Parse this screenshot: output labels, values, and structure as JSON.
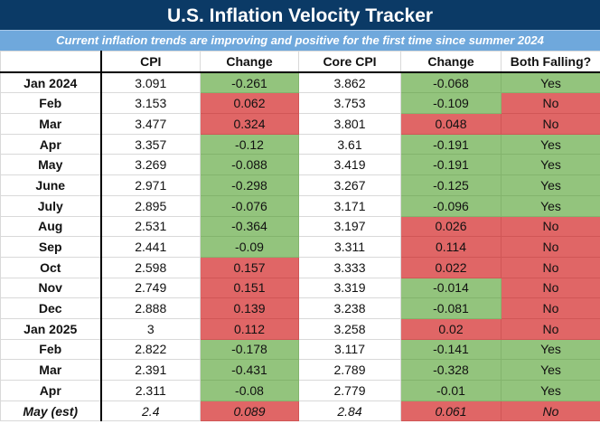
{
  "title": "U.S. Inflation Velocity Tracker",
  "subtitle": "Current inflation trends are improving and positive for the first time since summer 2024",
  "colors": {
    "title_bg": "#0b3a66",
    "subtitle_bg": "#6fa8dc",
    "falling": "#93c47d",
    "rising": "#e06666"
  },
  "headers": [
    "",
    "CPI",
    "Change",
    "Core CPI",
    "Change",
    "Both Falling?"
  ],
  "rows": [
    {
      "month": "Jan 2024",
      "cpi": "3.091",
      "cpi_change": "-0.261",
      "core_cpi": "3.862",
      "core_change": "-0.068",
      "both_falling": "Yes"
    },
    {
      "month": "Feb",
      "cpi": "3.153",
      "cpi_change": "0.062",
      "core_cpi": "3.753",
      "core_change": "-0.109",
      "both_falling": "No"
    },
    {
      "month": "Mar",
      "cpi": "3.477",
      "cpi_change": "0.324",
      "core_cpi": "3.801",
      "core_change": "0.048",
      "both_falling": "No"
    },
    {
      "month": "Apr",
      "cpi": "3.357",
      "cpi_change": "-0.12",
      "core_cpi": "3.61",
      "core_change": "-0.191",
      "both_falling": "Yes"
    },
    {
      "month": "May",
      "cpi": "3.269",
      "cpi_change": "-0.088",
      "core_cpi": "3.419",
      "core_change": "-0.191",
      "both_falling": "Yes"
    },
    {
      "month": "June",
      "cpi": "2.971",
      "cpi_change": "-0.298",
      "core_cpi": "3.267",
      "core_change": "-0.125",
      "both_falling": "Yes"
    },
    {
      "month": "July",
      "cpi": "2.895",
      "cpi_change": "-0.076",
      "core_cpi": "3.171",
      "core_change": "-0.096",
      "both_falling": "Yes"
    },
    {
      "month": "Aug",
      "cpi": "2.531",
      "cpi_change": "-0.364",
      "core_cpi": "3.197",
      "core_change": "0.026",
      "both_falling": "No"
    },
    {
      "month": "Sep",
      "cpi": "2.441",
      "cpi_change": "-0.09",
      "core_cpi": "3.311",
      "core_change": "0.114",
      "both_falling": "No"
    },
    {
      "month": "Oct",
      "cpi": "2.598",
      "cpi_change": "0.157",
      "core_cpi": "3.333",
      "core_change": "0.022",
      "both_falling": "No"
    },
    {
      "month": "Nov",
      "cpi": "2.749",
      "cpi_change": "0.151",
      "core_cpi": "3.319",
      "core_change": "-0.014",
      "both_falling": "No"
    },
    {
      "month": "Dec",
      "cpi": "2.888",
      "cpi_change": "0.139",
      "core_cpi": "3.238",
      "core_change": "-0.081",
      "both_falling": "No"
    },
    {
      "month": "Jan 2025",
      "cpi": "3",
      "cpi_change": "0.112",
      "core_cpi": "3.258",
      "core_change": "0.02",
      "both_falling": "No"
    },
    {
      "month": "Feb",
      "cpi": "2.822",
      "cpi_change": "-0.178",
      "core_cpi": "3.117",
      "core_change": "-0.141",
      "both_falling": "Yes"
    },
    {
      "month": "Mar",
      "cpi": "2.391",
      "cpi_change": "-0.431",
      "core_cpi": "2.789",
      "core_change": "-0.328",
      "both_falling": "Yes"
    },
    {
      "month": "Apr",
      "cpi": "2.311",
      "cpi_change": "-0.08",
      "core_cpi": "2.779",
      "core_change": "-0.01",
      "both_falling": "Yes"
    },
    {
      "month": "May (est)",
      "cpi": "2.4",
      "cpi_change": "0.089",
      "core_cpi": "2.84",
      "core_change": "0.061",
      "both_falling": "No",
      "estimate": true
    }
  ]
}
